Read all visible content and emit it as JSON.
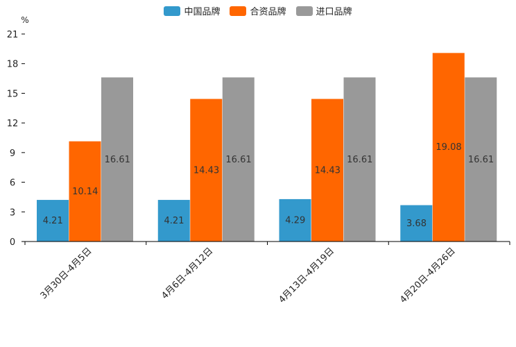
{
  "chart_data": {
    "type": "bar",
    "title": "",
    "xlabel": "",
    "ylabel": "%",
    "ylim": [
      0,
      21
    ],
    "yticks": [
      0,
      3,
      6,
      9,
      12,
      15,
      18,
      21
    ],
    "categories": [
      "3月30日-4月5日",
      "4月6日-4月12日",
      "4月13日-4月19日",
      "4月20日-4月26日"
    ],
    "series": [
      {
        "name": "中国品牌",
        "color": "#3399cc",
        "values": [
          4.21,
          4.21,
          4.29,
          3.68
        ]
      },
      {
        "name": "合资品牌",
        "color": "#ff6600",
        "values": [
          10.14,
          14.43,
          14.43,
          19.08
        ]
      },
      {
        "name": "进口品牌",
        "color": "#999999",
        "values": [
          16.61,
          16.61,
          16.61,
          16.61
        ]
      }
    ],
    "legend_position": "top-center"
  }
}
